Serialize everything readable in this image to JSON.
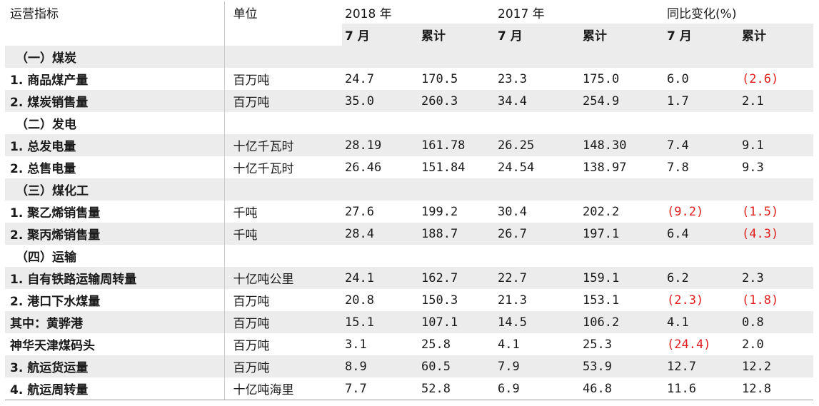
{
  "header": {
    "indicator": "运营指标",
    "unit": "单位",
    "year2018": "2018 年",
    "year2017": "2017 年",
    "yoy": "同比变化(%)",
    "sub": [
      "7 月",
      "累计",
      "7 月",
      "累计",
      "7 月",
      "累计"
    ]
  },
  "rows": [
    {
      "type": "section",
      "label": "（一）煤炭"
    },
    {
      "type": "data",
      "label": "1. 商品煤产量",
      "unit": "百万吨",
      "vals": [
        "24.7",
        "170.5",
        "23.3",
        "175.0",
        "6.0",
        "(2.6)"
      ],
      "neg": [
        false,
        false,
        false,
        false,
        false,
        true
      ]
    },
    {
      "type": "data",
      "label": "2. 煤炭销售量",
      "unit": "百万吨",
      "vals": [
        "35.0",
        "260.3",
        "34.4",
        "254.9",
        "1.7",
        "2.1"
      ],
      "neg": [
        false,
        false,
        false,
        false,
        false,
        false
      ]
    },
    {
      "type": "section",
      "label": "（二）发电"
    },
    {
      "type": "data",
      "label": "1. 总发电量",
      "unit": "十亿千瓦时",
      "vals": [
        "28.19",
        "161.78",
        "26.25",
        "148.30",
        "7.4",
        "9.1"
      ],
      "neg": [
        false,
        false,
        false,
        false,
        false,
        false
      ]
    },
    {
      "type": "data",
      "label": "2. 总售电量",
      "unit": "十亿千瓦时",
      "vals": [
        "26.46",
        "151.84",
        "24.54",
        "138.97",
        "7.8",
        "9.3"
      ],
      "neg": [
        false,
        false,
        false,
        false,
        false,
        false
      ]
    },
    {
      "type": "section",
      "label": "（三）煤化工"
    },
    {
      "type": "data",
      "label": "1. 聚乙烯销售量",
      "unit": "千吨",
      "vals": [
        "27.6",
        "199.2",
        "30.4",
        "202.2",
        "(9.2)",
        "(1.5)"
      ],
      "neg": [
        false,
        false,
        false,
        false,
        true,
        true
      ]
    },
    {
      "type": "data",
      "label": "2. 聚丙烯销售量",
      "unit": "千吨",
      "vals": [
        "28.4",
        "188.7",
        "26.7",
        "197.1",
        "6.4",
        "(4.3)"
      ],
      "neg": [
        false,
        false,
        false,
        false,
        false,
        true
      ]
    },
    {
      "type": "section",
      "label": "（四）运输"
    },
    {
      "type": "data",
      "label": "1. 自有铁路运输周转量",
      "unit": "十亿吨公里",
      "vals": [
        "24.1",
        "162.7",
        "22.7",
        "159.1",
        "6.2",
        "2.3"
      ],
      "neg": [
        false,
        false,
        false,
        false,
        false,
        false
      ]
    },
    {
      "type": "data",
      "label": "2. 港口下水煤量",
      "unit": "百万吨",
      "vals": [
        "20.8",
        "150.3",
        "21.3",
        "153.1",
        "(2.3)",
        "(1.8)"
      ],
      "neg": [
        false,
        false,
        false,
        false,
        true,
        true
      ]
    },
    {
      "type": "data",
      "label": "其中：黄骅港",
      "unit": "百万吨",
      "vals": [
        "15.1",
        "107.1",
        "14.5",
        "106.2",
        "4.1",
        "0.8"
      ],
      "neg": [
        false,
        false,
        false,
        false,
        false,
        false
      ]
    },
    {
      "type": "data",
      "label": "神华天津煤码头",
      "unit": "百万吨",
      "vals": [
        "3.1",
        "25.8",
        "4.1",
        "25.3",
        "(24.4)",
        "2.0"
      ],
      "neg": [
        false,
        false,
        false,
        false,
        true,
        false
      ]
    },
    {
      "type": "data",
      "label": "3. 航运货运量",
      "unit": "百万吨",
      "vals": [
        "8.9",
        "60.5",
        "7.9",
        "53.9",
        "12.7",
        "12.2"
      ],
      "neg": [
        false,
        false,
        false,
        false,
        false,
        false
      ]
    },
    {
      "type": "data",
      "label": "4. 航运周转量",
      "unit": "十亿吨海里",
      "vals": [
        "7.7",
        "52.8",
        "6.9",
        "46.8",
        "11.6",
        "12.8"
      ],
      "neg": [
        false,
        false,
        false,
        false,
        false,
        false
      ]
    }
  ],
  "colors": {
    "negative": "#e01e1e",
    "shade": "#ececec"
  }
}
